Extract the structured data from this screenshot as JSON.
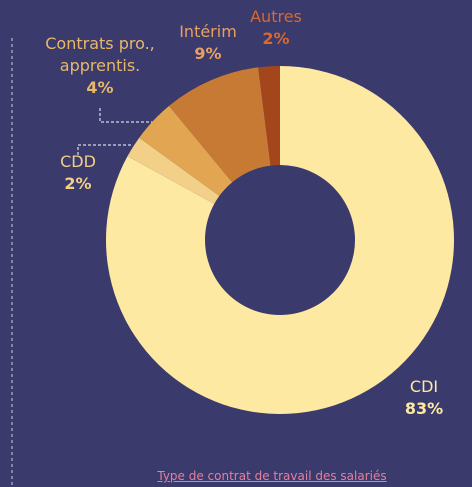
{
  "chart_data": {
    "type": "donut",
    "categories": [
      "CDI",
      "CDD",
      "Contrats pro., apprentis.",
      "Intérim",
      "Autres"
    ],
    "values": [
      83,
      2,
      4,
      9,
      2
    ],
    "value_labels": [
      "83%",
      "2%",
      "4%",
      "9%",
      "2%"
    ],
    "colors": [
      "#fde9a2",
      "#f2d088",
      "#e2a653",
      "#c77a34",
      "#a4461b"
    ],
    "label_colors": [
      "#fde9a2",
      "#f2d088",
      "#e8b86a",
      "#e8a060",
      "#d8682e"
    ],
    "caption": "Type de contrat de travail des salariés"
  }
}
